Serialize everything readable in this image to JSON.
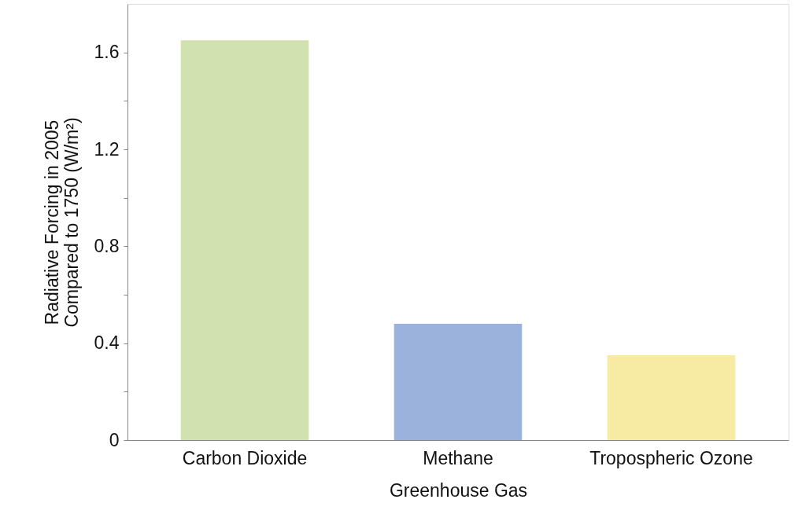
{
  "chart_data": {
    "type": "bar",
    "xlabel": "Greenhouse Gas",
    "ylabel": "Radiative Forcing in 2005\nCompared to 1750 (W/m²)",
    "categories": [
      "Carbon Dioxide",
      "Methane",
      "Tropospheric Ozone"
    ],
    "values": [
      1.65,
      0.48,
      0.35
    ],
    "colors": [
      "#d1e2b0",
      "#9bb3dc",
      "#f7eba4"
    ],
    "ylim": [
      0,
      1.8
    ],
    "yticks": [
      0,
      {
        "value": 0.2,
        "label": null
      },
      0.4,
      {
        "value": 0.6,
        "label": null
      },
      0.8,
      {
        "value": 1.0,
        "label": null
      },
      1.2,
      {
        "value": 1.4,
        "label": null
      },
      1.6
    ],
    "grid": false
  }
}
